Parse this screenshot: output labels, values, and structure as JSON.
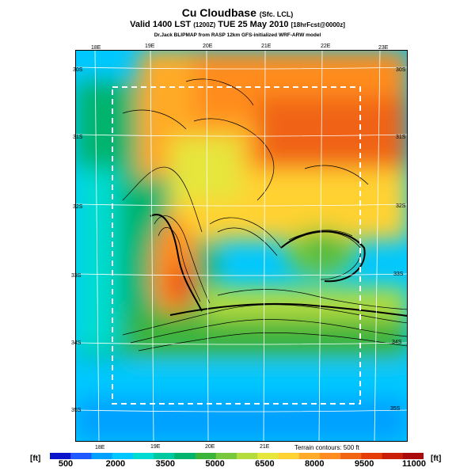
{
  "header": {
    "title": "Cu Cloudbase",
    "title_suffix": "(Sfc. LCL)",
    "valid_text": "Valid 1400 LST",
    "valid_paren": "(1200Z)",
    "valid_date": "TUE 25 May 2010",
    "forecast_tag": "[18hrFcst@0000z]",
    "credit": "Dr.Jack BLIPMAP from RASP 12km GFS-initialized WRF-ARW model"
  },
  "map": {
    "lon_labels_top": [
      "18E",
      "19E",
      "20E",
      "21E",
      "22E",
      "23E"
    ],
    "lon_labels_bottom": [
      "18E",
      "19E",
      "20E",
      "21E"
    ],
    "lat_labels_left": [
      "30S",
      "31S",
      "32S",
      "33S",
      "34S",
      "35S"
    ],
    "lat_labels_right": [
      "30S",
      "31S",
      "32S",
      "33S",
      "34S",
      "35S"
    ],
    "terrain_note": "Terrain contours: 500 ft"
  },
  "colorbar": {
    "unit_left": "[ft]",
    "unit_right": "[ft]",
    "ticks": [
      "500",
      "2000",
      "3500",
      "5000",
      "6500",
      "8000",
      "9500",
      "11000"
    ],
    "colors": [
      "#0a14c8",
      "#1e5aff",
      "#00a0ff",
      "#00c8ff",
      "#00dcd2",
      "#00c8a0",
      "#00b46e",
      "#3cb43c",
      "#78c83c",
      "#b4dc3c",
      "#e6e63c",
      "#ffd232",
      "#ffaa28",
      "#ff8c1e",
      "#f06414",
      "#e63c0a",
      "#c81e0a",
      "#aa0a0a"
    ]
  }
}
